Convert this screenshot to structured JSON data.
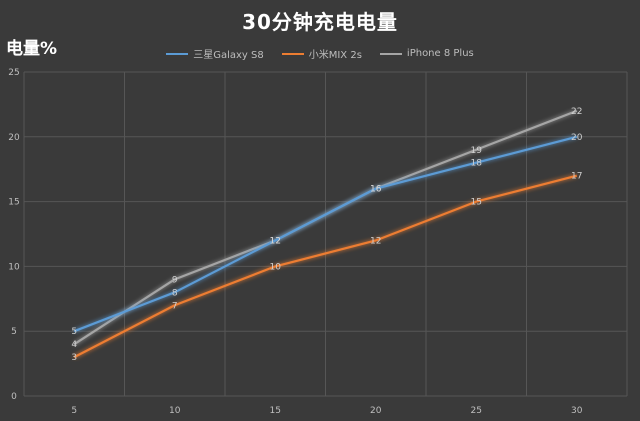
{
  "chart_data": {
    "type": "line",
    "title": "30分钟充电电量",
    "ylabel": "电量%",
    "xlabel": "",
    "x": [
      5,
      10,
      15,
      20,
      25,
      30
    ],
    "ylim": [
      0,
      25
    ],
    "yticks": [
      0,
      5,
      10,
      15,
      20,
      25
    ],
    "grid": true,
    "legend_position": "top",
    "series": [
      {
        "name": "三星Galaxy S8",
        "color": "#5b9bd5",
        "values": [
          5,
          8,
          12,
          16,
          18,
          20
        ]
      },
      {
        "name": "小米MIX 2s",
        "color": "#ed7d31",
        "values": [
          3,
          7,
          10,
          12,
          15,
          17
        ]
      },
      {
        "name": "iPhone 8 Plus",
        "color": "#a5a5a5",
        "values": [
          4,
          9,
          12,
          16,
          19,
          22
        ]
      }
    ]
  }
}
